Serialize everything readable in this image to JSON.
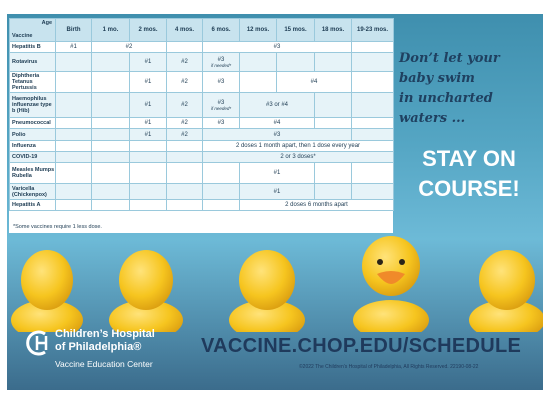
{
  "table": {
    "age_header": "Age",
    "vaccine_header": "Vaccine",
    "ages": [
      "Birth",
      "1 mo.",
      "2 mos.",
      "4 mos.",
      "6 mos.",
      "12 mos.",
      "15 mos.",
      "18 mos.",
      "19-23 mos."
    ],
    "vaccines": {
      "hepb": "Hepatitis B",
      "rota": "Rotavirus",
      "dtap": "Diphtheria Tetanus Pertussis",
      "hib": "Haemophilus influenzae type b (Hib)",
      "pcv": "Pneumococcal",
      "polio": "Polio",
      "flu": "Influenza",
      "covid": "COVID-19",
      "mmr": "Measles Mumps Rubella",
      "var": "Varicella (Chickenpox)",
      "hepa": "Hepatitis A"
    },
    "doses": {
      "d1": "#1",
      "d2": "#2",
      "d3": "#3",
      "d4": "#4",
      "d3_or_d4": "#3 or #4",
      "if_needed": "if needed*",
      "flu_schedule": "2 doses 1 month apart, then 1 dose every year",
      "covid_schedule": "2 or 3 doses*",
      "hepa_schedule": "2 doses 6 months apart"
    },
    "footnote": "*Some vaccines require 1 less dose."
  },
  "tagline": [
    "Don’t let your",
    "baby swim",
    "in uncharted",
    "waters ..."
  ],
  "stay": [
    "STAY ON",
    "COURSE!"
  ],
  "logo": {
    "name_line1": "Children’s Hospital",
    "name_line2": "of Philadelphia®",
    "subtitle": "Vaccine Education Center"
  },
  "url": "VACCINE.CHOP.EDU/SCHEDULE",
  "copyright": "©2022 The Children’s Hospital of Philadelphia, All Rights Reserved. 22190-08-22",
  "colors": {
    "background": "#55a6c4",
    "table_header": "#c8e3ee",
    "table_text": "#1d3b52",
    "tagline": "#1f4060",
    "duck": "#f6c51f",
    "beak": "#f08a2a"
  }
}
